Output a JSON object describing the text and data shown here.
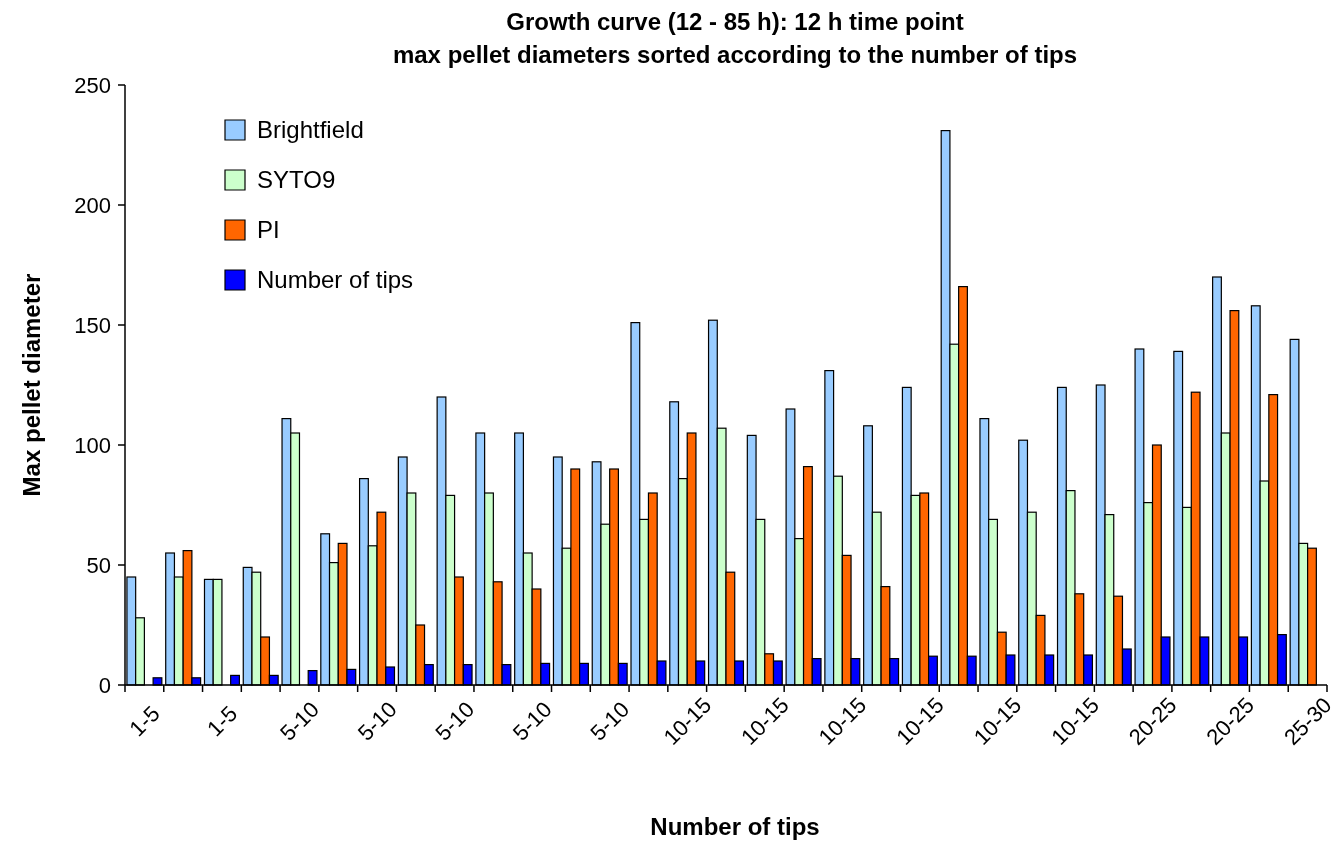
{
  "chart_data": {
    "type": "bar",
    "title": "Growth curve (12 - 85 h): 12 h time point",
    "subtitle": "max pellet diameters sorted according to the number of tips",
    "xlabel": "Number of tips",
    "ylabel": "Max pellet diameter",
    "categories": [
      "1-5",
      null,
      "1-5",
      null,
      "5-10",
      null,
      "5-10",
      null,
      "5-10",
      null,
      "5-10",
      null,
      "5-10",
      null,
      "10-15",
      null,
      "10-15",
      null,
      "10-15",
      null,
      "10-15",
      null,
      "10-15",
      null,
      "10-15",
      null,
      "20-25",
      null,
      "20-25",
      null,
      "25-30"
    ],
    "series": [
      {
        "name": "Brightfield",
        "color": "#99ccff",
        "values": [
          45,
          55,
          44,
          49,
          111,
          63,
          86,
          95,
          120,
          105,
          105,
          95,
          93,
          151,
          118,
          152,
          104,
          115,
          131,
          108,
          124,
          231,
          111,
          102,
          124,
          125,
          140,
          139,
          170,
          158,
          144
        ]
      },
      {
        "name": "SYTO9",
        "color": "#ccffcc",
        "values": [
          28,
          45,
          44,
          47,
          105,
          51,
          58,
          80,
          79,
          80,
          55,
          57,
          67,
          69,
          86,
          107,
          69,
          61,
          87,
          72,
          79,
          142,
          69,
          72,
          81,
          71,
          76,
          74,
          105,
          85,
          59
        ]
      },
      {
        "name": "PI",
        "color": "#ff6600",
        "values": [
          null,
          56,
          null,
          20,
          null,
          59,
          72,
          25,
          45,
          43,
          40,
          90,
          90,
          80,
          105,
          47,
          13,
          91,
          54,
          41,
          80,
          166,
          22,
          29,
          38,
          37,
          100,
          122,
          156,
          121,
          57
        ]
      },
      {
        "name": "Number of tips",
        "color": "#0000ff",
        "values": [
          3,
          3,
          4,
          4,
          6,
          6.5,
          7.5,
          8.5,
          8.5,
          8.5,
          9,
          9,
          9,
          10,
          10,
          10,
          10,
          11,
          11,
          11,
          12,
          12,
          12.5,
          12.5,
          12.5,
          15,
          20,
          20,
          20,
          21,
          null
        ]
      }
    ],
    "ylim": [
      0,
      250
    ],
    "yticks": [
      0,
      50,
      100,
      150,
      200,
      250
    ],
    "legend": "top left"
  }
}
